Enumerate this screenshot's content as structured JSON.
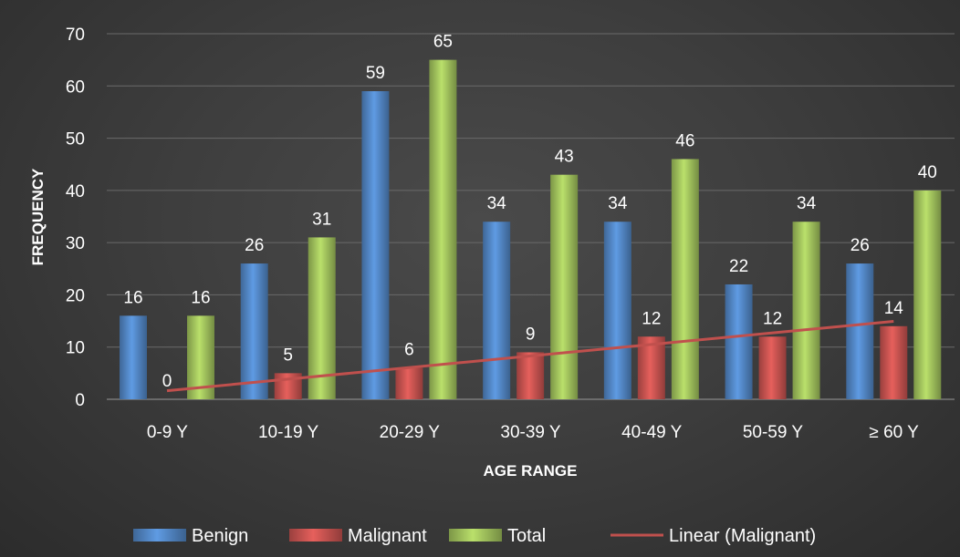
{
  "chart_data": {
    "type": "bar",
    "categories": [
      "0-9 Y",
      "10-19 Y",
      "20-29 Y",
      "30-39 Y",
      "40-49 Y",
      "50-59 Y",
      "≥ 60 Y"
    ],
    "series": [
      {
        "name": "Benign",
        "values": [
          16,
          26,
          59,
          34,
          34,
          22,
          26
        ],
        "color": "#4f81bd"
      },
      {
        "name": "Malignant",
        "values": [
          0,
          5,
          6,
          9,
          12,
          12,
          14
        ],
        "color": "#c0504d"
      },
      {
        "name": "Total",
        "values": [
          16,
          31,
          65,
          43,
          46,
          34,
          40
        ],
        "color": "#9bbb59"
      }
    ],
    "trendline": {
      "name": "Linear (Malignant)",
      "of_series": "Malignant",
      "type": "linear",
      "color": "#c0504d"
    },
    "xlabel": "AGE RANGE",
    "ylabel": "FREQUENCY",
    "ylim": [
      0,
      70
    ],
    "yticks": [
      0,
      10,
      20,
      30,
      40,
      50,
      60,
      70
    ],
    "grid": true,
    "legend": "bottom",
    "data_labels": true
  }
}
